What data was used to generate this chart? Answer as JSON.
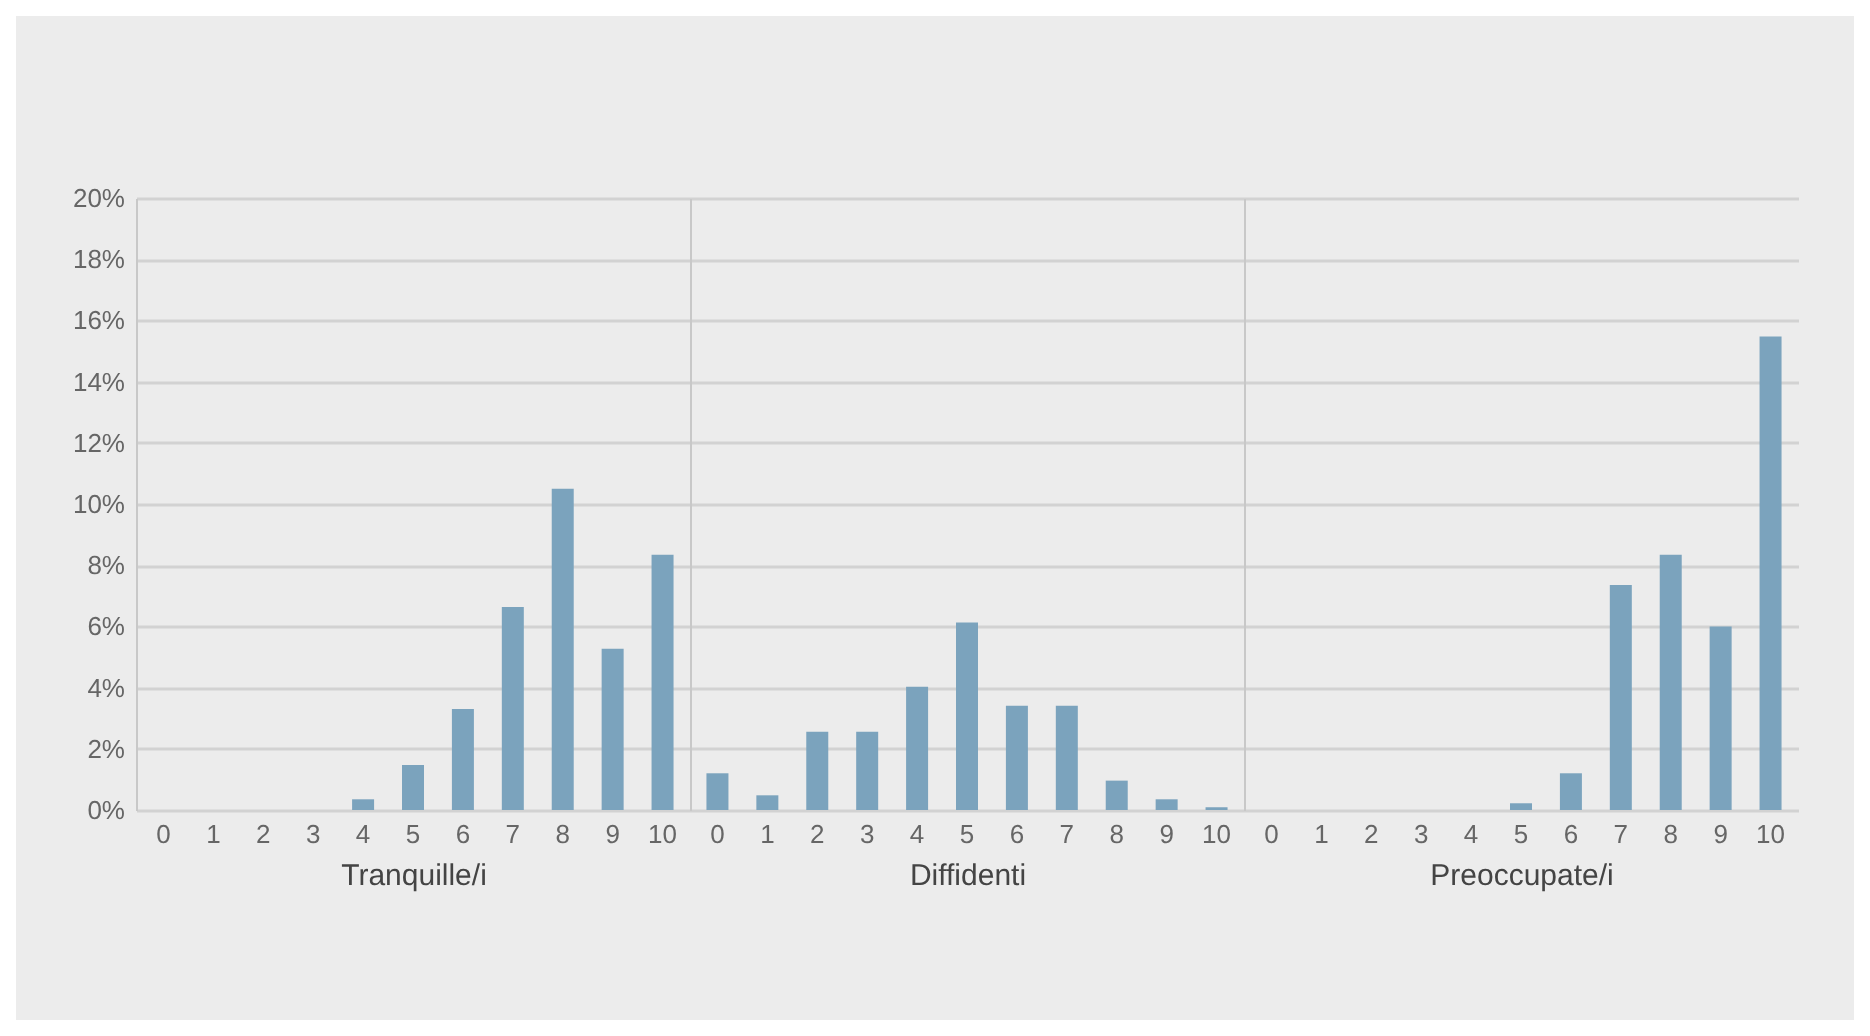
{
  "chart_data": [
    {
      "type": "bar",
      "xlabel": "Tranquille/i",
      "categories": [
        "0",
        "1",
        "2",
        "3",
        "4",
        "5",
        "6",
        "7",
        "8",
        "9",
        "10"
      ],
      "values": [
        0,
        0,
        0,
        0,
        0.35,
        1.47,
        3.3,
        6.63,
        10.5,
        5.27,
        8.34
      ],
      "color": "#7ba3bd",
      "ylim": [
        0,
        20
      ],
      "yticks": [
        {
          "value": 0,
          "label": "0%"
        },
        {
          "value": 2,
          "label": "2%"
        },
        {
          "value": 4,
          "label": "4%"
        },
        {
          "value": 6,
          "label": "6%"
        },
        {
          "value": 8,
          "label": "8%"
        },
        {
          "value": 10,
          "label": "10%"
        },
        {
          "value": 12,
          "label": "12%"
        },
        {
          "value": 14,
          "label": "14%"
        },
        {
          "value": 16,
          "label": "16%"
        },
        {
          "value": 18,
          "label": "18%"
        },
        {
          "value": 20,
          "label": "20%"
        }
      ],
      "grid": "y"
    },
    {
      "type": "bar",
      "xlabel": "Diffidenti",
      "categories": [
        "0",
        "1",
        "2",
        "3",
        "4",
        "5",
        "6",
        "7",
        "8",
        "9",
        "10"
      ],
      "values": [
        1.2,
        0.48,
        2.56,
        2.56,
        4.03,
        6.13,
        3.41,
        3.41,
        0.96,
        0.35,
        0.09
      ],
      "color": "#7ba3bd",
      "ylim": [
        0,
        20
      ],
      "yticks": [
        {
          "value": 0,
          "label": null
        },
        {
          "value": 2,
          "label": null
        },
        {
          "value": 4,
          "label": null
        },
        {
          "value": 6,
          "label": null
        },
        {
          "value": 8,
          "label": null
        },
        {
          "value": 10,
          "label": null
        },
        {
          "value": 12,
          "label": null
        },
        {
          "value": 14,
          "label": null
        },
        {
          "value": 16,
          "label": null
        },
        {
          "value": 18,
          "label": null
        },
        {
          "value": 20,
          "label": null
        }
      ],
      "grid": "y",
      "tick_labels": "x"
    },
    {
      "type": "bar",
      "xlabel": "Preoccupate/i",
      "categories": [
        "0",
        "1",
        "2",
        "3",
        "4",
        "5",
        "6",
        "7",
        "8",
        "9",
        "10"
      ],
      "values": [
        0,
        0,
        0,
        0,
        0,
        0.22,
        1.2,
        7.35,
        8.34,
        6.0,
        15.47
      ],
      "color": "#7ba3bd",
      "ylim": [
        0,
        20
      ],
      "yticks": [
        {
          "value": 0,
          "label": null
        },
        {
          "value": 2,
          "label": null
        },
        {
          "value": 4,
          "label": null
        },
        {
          "value": 6,
          "label": null
        },
        {
          "value": 8,
          "label": null
        },
        {
          "value": 10,
          "label": null
        },
        {
          "value": 12,
          "label": null
        },
        {
          "value": 14,
          "label": null
        },
        {
          "value": 16,
          "label": null
        },
        {
          "value": 18,
          "label": null
        },
        {
          "value": 20,
          "label": null
        }
      ],
      "grid": "y",
      "tick_labels": "x"
    }
  ]
}
